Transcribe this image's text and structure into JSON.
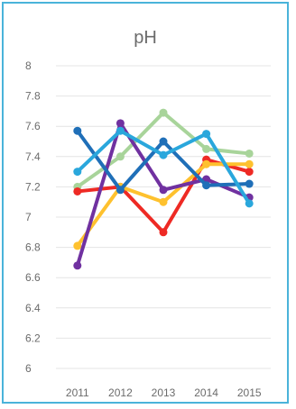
{
  "chart_data": {
    "type": "line",
    "title": "pH",
    "xlabel": "",
    "ylabel": "",
    "categories": [
      "2011",
      "2012",
      "2013",
      "2014",
      "2015"
    ],
    "ylim": [
      6,
      8
    ],
    "y_ticks": [
      "6",
      "6.2",
      "6.4",
      "6.6",
      "6.8",
      "7",
      "7.2",
      "7.4",
      "7.6",
      "7.8",
      "8"
    ],
    "grid": true,
    "legend": "none",
    "series": [
      {
        "color": "#a8d49a",
        "values": [
          7.2,
          7.4,
          7.69,
          7.45,
          7.42
        ]
      },
      {
        "color": "#ee2a24",
        "values": [
          7.17,
          7.2,
          6.9,
          7.38,
          7.3
        ]
      },
      {
        "color": "#fec12e",
        "values": [
          6.81,
          7.2,
          7.1,
          7.35,
          7.35
        ]
      },
      {
        "color": "#7031a0",
        "values": [
          6.68,
          7.62,
          7.18,
          7.25,
          7.13
        ]
      },
      {
        "color": "#1f6fb8",
        "values": [
          7.57,
          7.18,
          7.5,
          7.21,
          7.22
        ]
      },
      {
        "color": "#2aa7dc",
        "values": [
          7.3,
          7.57,
          7.41,
          7.55,
          7.09
        ]
      }
    ]
  }
}
